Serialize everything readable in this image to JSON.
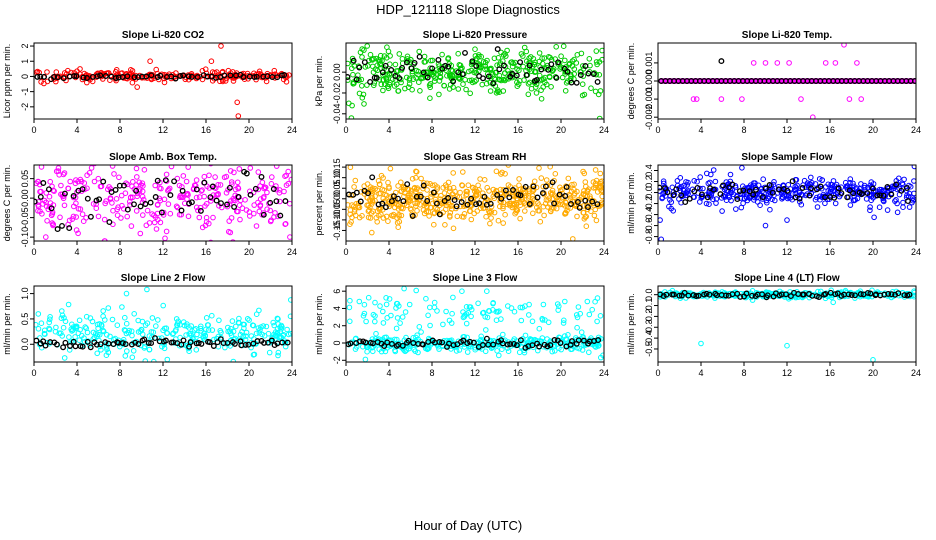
{
  "page": {
    "title": "HDP_121118  Slope Diagnostics",
    "xlabel": "Hour of Day (UTC)"
  },
  "chart_data": [
    {
      "type": "scatter",
      "title": "Slope Li-820 CO2",
      "ylabel": "Licor ppm per min.",
      "xlim": [
        0,
        24
      ],
      "ylim": [
        -2.8,
        2.2
      ],
      "yticks": [
        -2,
        -1,
        0,
        1,
        2
      ],
      "ytick_labels": [
        "-2",
        "-1",
        "0",
        "1",
        "2"
      ],
      "xticks": [
        0,
        4,
        8,
        12,
        16,
        20,
        24
      ],
      "color": "#ff0000",
      "count": 230,
      "spread": 0.18,
      "center": 0.0,
      "seed": 1,
      "highlight_count": 55,
      "highlight_spread": 0.06,
      "highlight_center": 0.0,
      "outliers": [
        [
          17.4,
          2.0
        ],
        [
          18.9,
          -1.7
        ],
        [
          19.0,
          -2.6
        ],
        [
          10.8,
          1.0
        ],
        [
          16.5,
          1.0
        ],
        [
          9.6,
          -0.7
        ]
      ]
    },
    {
      "type": "scatter",
      "title": "Slope Li-820 Pressure",
      "ylabel": "kPa per min.",
      "xlim": [
        0,
        24
      ],
      "ylim": [
        -0.045,
        0.028
      ],
      "yticks": [
        -0.04,
        -0.02,
        0.0
      ],
      "ytick_labels": [
        "-0.04",
        "-0.02",
        "0.00"
      ],
      "xticks": [
        0,
        4,
        8,
        12,
        16,
        20,
        24
      ],
      "color": "#00cc00",
      "count": 420,
      "spread": 0.011,
      "center": 0.0,
      "seed": 2,
      "highlight_count": 60,
      "highlight_spread": 0.007,
      "highlight_center": 0.0,
      "outliers": [
        [
          0.5,
          -0.044
        ],
        [
          3.8,
          0.024
        ],
        [
          12.0,
          0.022
        ],
        [
          7.8,
          -0.025
        ],
        [
          21.9,
          0.018
        ]
      ]
    },
    {
      "type": "scatter",
      "title": "Slope Li-820 Temp.",
      "ylabel": "degrees C per min.",
      "xlim": [
        0,
        24
      ],
      "ylim": [
        -0.0021,
        0.0021
      ],
      "yticks": [
        -0.002,
        -0.001,
        0.0,
        0.001
      ],
      "ytick_labels": [
        "-0.002",
        "-0.001",
        "0.000",
        "0.001"
      ],
      "xticks": [
        0,
        4,
        8,
        12,
        16,
        20,
        24
      ],
      "color": "#ff00ff",
      "count": 0,
      "spread": 0.0,
      "center": 0.0,
      "seed": 3,
      "highlight_count": 0,
      "highlight_spread": 0.0,
      "highlight_center": 0.0,
      "line_of_points": {
        "value": 0.0,
        "from": 0.3,
        "to": 23.9,
        "step": 0.1
      },
      "outliers": [
        [
          3.3,
          -0.001
        ],
        [
          3.6,
          -0.001
        ],
        [
          5.9,
          -0.001
        ],
        [
          7.8,
          -0.001
        ],
        [
          8.9,
          0.001
        ],
        [
          10.0,
          0.001
        ],
        [
          11.1,
          0.001
        ],
        [
          12.2,
          0.001
        ],
        [
          13.3,
          -0.001
        ],
        [
          15.6,
          0.001
        ],
        [
          16.5,
          0.001
        ],
        [
          17.3,
          0.002
        ],
        [
          17.8,
          -0.001
        ],
        [
          18.5,
          0.001
        ],
        [
          18.9,
          -0.001
        ],
        [
          14.4,
          -0.002
        ],
        [
          5.4,
          0.0
        ],
        [
          7.8,
          0.0
        ]
      ],
      "black_outliers": [
        [
          5.9,
          0.0011
        ]
      ]
    },
    {
      "type": "scatter",
      "title": "Slope Amb. Box Temp.",
      "ylabel": "degrees C per min.",
      "xlim": [
        0,
        24
      ],
      "ylim": [
        -0.11,
        0.085
      ],
      "yticks": [
        -0.1,
        -0.05,
        0.0,
        0.05
      ],
      "ytick_labels": [
        "-0.10",
        "-0.05",
        "0.00",
        "0.05"
      ],
      "xticks": [
        0,
        4,
        8,
        12,
        16,
        20,
        24
      ],
      "color": "#ff00ff",
      "count": 330,
      "spread": 0.045,
      "center": 0.0,
      "seed": 4,
      "highlight_count": 60,
      "highlight_spread": 0.035,
      "highlight_center": 0.0,
      "outliers": [
        [
          0.7,
          0.08
        ],
        [
          1.1,
          -0.1
        ],
        [
          6.6,
          -0.11
        ],
        [
          19.1,
          0.075
        ],
        [
          23.8,
          -0.1
        ]
      ]
    },
    {
      "type": "scatter",
      "title": "Slope Gas Stream RH",
      "ylabel": "percent per min.",
      "xlim": [
        0,
        24
      ],
      "ylim": [
        -0.2,
        0.16
      ],
      "yticks": [
        -0.15,
        -0.1,
        -0.05,
        0.0,
        0.05,
        0.1,
        0.15
      ],
      "ytick_labels": [
        "-0.15",
        "-0.10",
        "-0.05",
        "0.00",
        "0.05",
        "0.10",
        "0.15"
      ],
      "xticks": [
        0,
        4,
        8,
        12,
        16,
        20,
        24
      ],
      "color": "#ffaa00",
      "count": 560,
      "spread": 0.055,
      "center": 0.0,
      "seed": 5,
      "highlight_count": 60,
      "highlight_spread": 0.035,
      "highlight_center": 0.0,
      "outliers": [
        [
          15.1,
          0.16
        ],
        [
          21.1,
          -0.19
        ],
        [
          2.4,
          -0.16
        ],
        [
          6.5,
          0.13
        ],
        [
          10.0,
          -0.14
        ]
      ]
    },
    {
      "type": "scatter",
      "title": "Slope Sample Flow",
      "ylabel": "ml/min per min.",
      "xlim": [
        0,
        24
      ],
      "ylim": [
        -0.88,
        0.5
      ],
      "yticks": [
        -0.8,
        -0.6,
        -0.4,
        -0.2,
        0.0,
        0.2,
        0.4
      ],
      "ytick_labels": [
        "-0.8",
        "-0.6",
        "-0.4",
        "-0.2",
        "0.0",
        "0.2",
        "0.4"
      ],
      "xticks": [
        0,
        4,
        8,
        12,
        16,
        20,
        24
      ],
      "color": "#0000ff",
      "count": 400,
      "spread": 0.13,
      "center": 0.02,
      "seed": 6,
      "highlight_count": 60,
      "highlight_spread": 0.1,
      "highlight_center": 0.0,
      "outliers": [
        [
          0.3,
          -0.85
        ],
        [
          0.2,
          -0.5
        ],
        [
          7.8,
          0.45
        ],
        [
          10.0,
          -0.6
        ],
        [
          12.0,
          -0.5
        ],
        [
          20.1,
          -0.45
        ]
      ]
    },
    {
      "type": "scatter",
      "title": "Slope Line 2 Flow",
      "ylabel": "ml/min per min.",
      "xlim": [
        0,
        24
      ],
      "ylim": [
        -0.35,
        1.15
      ],
      "yticks": [
        0.0,
        0.5,
        1.0
      ],
      "ytick_labels": [
        "0.0",
        "0.5",
        "1.0"
      ],
      "xticks": [
        0,
        4,
        8,
        12,
        16,
        20,
        24
      ],
      "color": "#00ffff",
      "count": 320,
      "spread": 0.2,
      "center": 0.2,
      "seed": 7,
      "highlight_count": 70,
      "highlight_spread": 0.04,
      "highlight_center": 0.02,
      "outliers": [
        [
          8.6,
          1.0
        ],
        [
          10.5,
          1.08
        ],
        [
          12.4,
          -0.3
        ],
        [
          20.5,
          -0.2
        ],
        [
          0.4,
          0.6
        ]
      ]
    },
    {
      "type": "scatter",
      "title": "Slope Line 3 Flow",
      "ylabel": "ml/min per min.",
      "xlim": [
        0,
        24
      ],
      "ylim": [
        -2.2,
        6.6
      ],
      "yticks": [
        -2,
        0,
        2,
        4,
        6
      ],
      "ytick_labels": [
        "-2",
        "0",
        "2",
        "4",
        "6"
      ],
      "xticks": [
        0,
        4,
        8,
        12,
        16,
        20,
        24
      ],
      "color": "#00ffff",
      "count": 330,
      "spread": 0.45,
      "center": -0.1,
      "seed": 8,
      "highlight_count": 70,
      "highlight_spread": 0.25,
      "highlight_center": 0.0,
      "upper_band": {
        "count": 110,
        "center": 3.6,
        "spread": 1.2
      },
      "outliers": [
        [
          5.4,
          6.3
        ],
        [
          1.8,
          -1.9
        ],
        [
          13.1,
          6.0
        ],
        [
          23.4,
          5.2
        ]
      ]
    },
    {
      "type": "scatter",
      "title": "Slope Line 4 (LT) Flow",
      "ylabel": "ml/min per min.",
      "xlim": [
        0,
        24
      ],
      "ylim": [
        -0.62,
        0.08
      ],
      "yticks": [
        -0.5,
        -0.4,
        -0.3,
        -0.2,
        -0.1,
        0.0
      ],
      "ytick_labels": [
        "-0.5",
        "-0.4",
        "-0.3",
        "-0.2",
        "-0.1",
        "0.0"
      ],
      "xticks": [
        0,
        4,
        8,
        12,
        16,
        20,
        24
      ],
      "color": "#00ffff",
      "count": 330,
      "spread": 0.014,
      "center": 0.0,
      "seed": 9,
      "highlight_count": 70,
      "highlight_spread": 0.01,
      "highlight_center": 0.0,
      "outliers": [
        [
          4.0,
          -0.45
        ],
        [
          12.0,
          -0.47
        ],
        [
          20.0,
          -0.6
        ],
        [
          16.3,
          -0.07
        ],
        [
          8.8,
          -0.05
        ]
      ]
    }
  ]
}
